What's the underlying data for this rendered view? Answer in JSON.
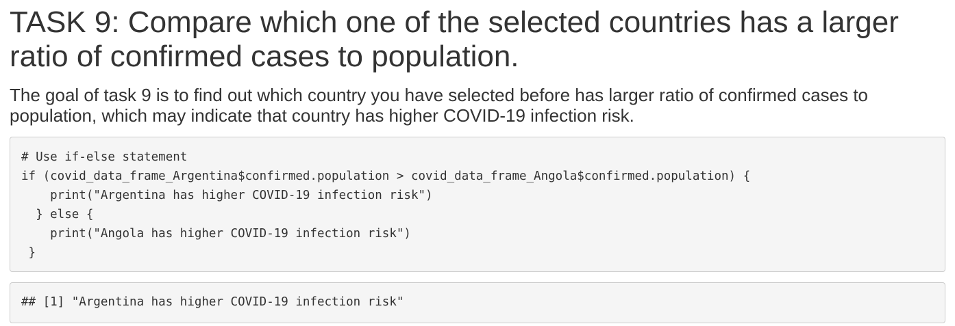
{
  "section": {
    "title": "TASK 9: Compare which one of the selected countries has a larger ratio of confirmed cases to population.",
    "description": "The goal of task 9 is to find out which country you have selected before has larger ratio of confirmed cases to population, which may indicate that country has higher COVID-19 infection risk."
  },
  "code": {
    "lines": [
      "# Use if-else statement",
      "if (covid_data_frame_Argentina$confirmed.population > covid_data_frame_Angola$confirmed.population) {",
      "    print(\"Argentina has higher COVID-19 infection risk\")",
      "  } else {",
      "    print(\"Angola has higher COVID-19 infection risk\")",
      " }"
    ]
  },
  "output": {
    "lines": [
      "## [1] \"Argentina has higher COVID-19 infection risk\""
    ]
  }
}
